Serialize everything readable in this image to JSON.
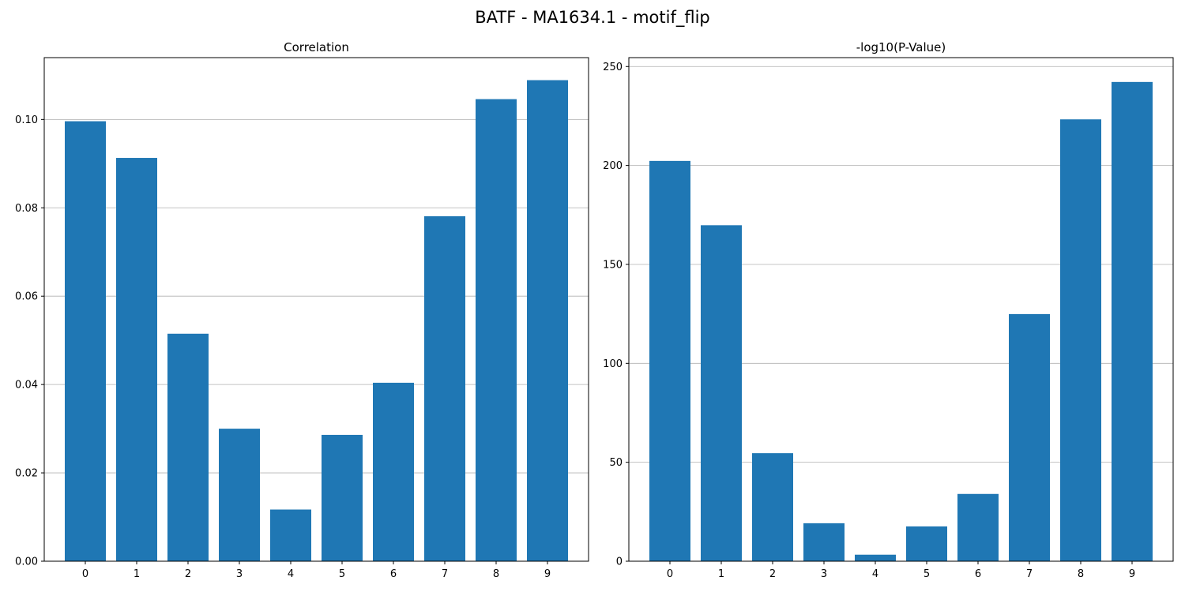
{
  "figure": {
    "title": "BATF - MA1634.1 - motif_flip"
  },
  "chart_data": [
    {
      "type": "bar",
      "title": "Correlation",
      "categories": [
        "0",
        "1",
        "2",
        "3",
        "4",
        "5",
        "6",
        "7",
        "8",
        "9"
      ],
      "values": [
        0.0996,
        0.0913,
        0.0515,
        0.03,
        0.0117,
        0.0286,
        0.0404,
        0.0781,
        0.1046,
        0.1089
      ],
      "ylim": [
        0,
        0.114
      ],
      "yticks": [
        0.0,
        0.02,
        0.04,
        0.06,
        0.08,
        0.1
      ],
      "ytick_labels": [
        "0.00",
        "0.02",
        "0.04",
        "0.06",
        "0.08",
        "0.10"
      ],
      "xlabel": "",
      "ylabel": "",
      "grid": "y",
      "bar_color": "#1f77b4"
    },
    {
      "type": "bar",
      "title": "-log10(P-Value)",
      "categories": [
        "0",
        "1",
        "2",
        "3",
        "4",
        "5",
        "6",
        "7",
        "8",
        "9"
      ],
      "values": [
        202.3,
        169.8,
        54.6,
        19.2,
        3.3,
        17.6,
        34.0,
        124.9,
        223.3,
        242.2
      ],
      "ylim": [
        0,
        254.5
      ],
      "yticks": [
        0,
        50,
        100,
        150,
        200,
        250
      ],
      "ytick_labels": [
        "0",
        "50",
        "100",
        "150",
        "200",
        "250"
      ],
      "xlabel": "",
      "ylabel": "",
      "grid": "y",
      "bar_color": "#1f77b4"
    }
  ]
}
